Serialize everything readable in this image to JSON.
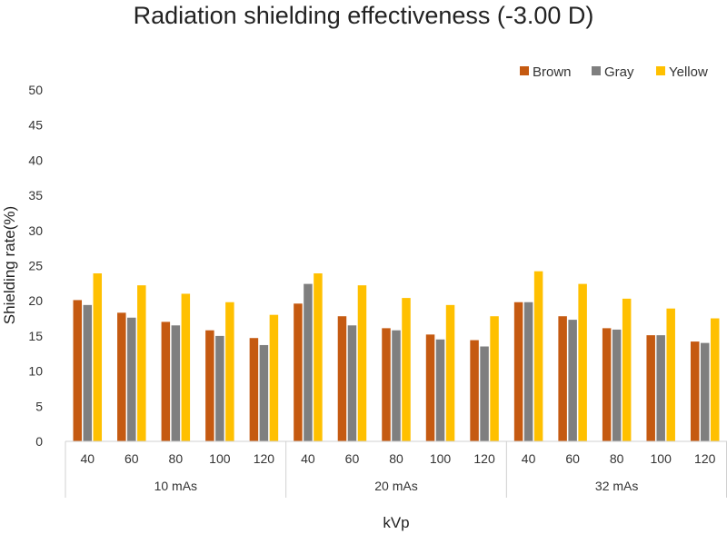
{
  "chart_data": {
    "type": "bar",
    "title": "Radiation shielding effectiveness (-3.00 D)",
    "xlabel": "kVp",
    "ylabel": "Shielding rate(%)",
    "ylim": [
      0,
      50
    ],
    "yticks": [
      "0",
      "5",
      "10",
      "15",
      "20",
      "25",
      "30",
      "35",
      "40",
      "45",
      "50"
    ],
    "grid": false,
    "legend_position": "top-right",
    "groups": [
      {
        "label": "10 mAs",
        "categories": [
          "40",
          "60",
          "80",
          "100",
          "120"
        ]
      },
      {
        "label": "20 mAs",
        "categories": [
          "40",
          "60",
          "80",
          "100",
          "120"
        ]
      },
      {
        "label": "32 mAs",
        "categories": [
          "40",
          "60",
          "80",
          "100",
          "120"
        ]
      }
    ],
    "series": [
      {
        "name": "Brown",
        "color": "#C55A11",
        "values": [
          20.1,
          18.3,
          17.0,
          15.8,
          14.7,
          19.6,
          17.8,
          16.1,
          15.2,
          14.4,
          19.8,
          17.8,
          16.1,
          15.1,
          14.2
        ]
      },
      {
        "name": "Gray",
        "color": "#7F7F7F",
        "values": [
          19.4,
          17.6,
          16.5,
          15.0,
          13.7,
          22.4,
          16.5,
          15.8,
          14.5,
          13.5,
          19.8,
          17.3,
          15.9,
          15.1,
          14.0
        ]
      },
      {
        "name": "Yellow",
        "color": "#FFC000",
        "values": [
          23.9,
          22.2,
          21.0,
          19.8,
          18.0,
          23.9,
          22.2,
          20.4,
          19.4,
          17.8,
          24.2,
          22.4,
          20.3,
          18.9,
          17.5
        ]
      }
    ]
  }
}
